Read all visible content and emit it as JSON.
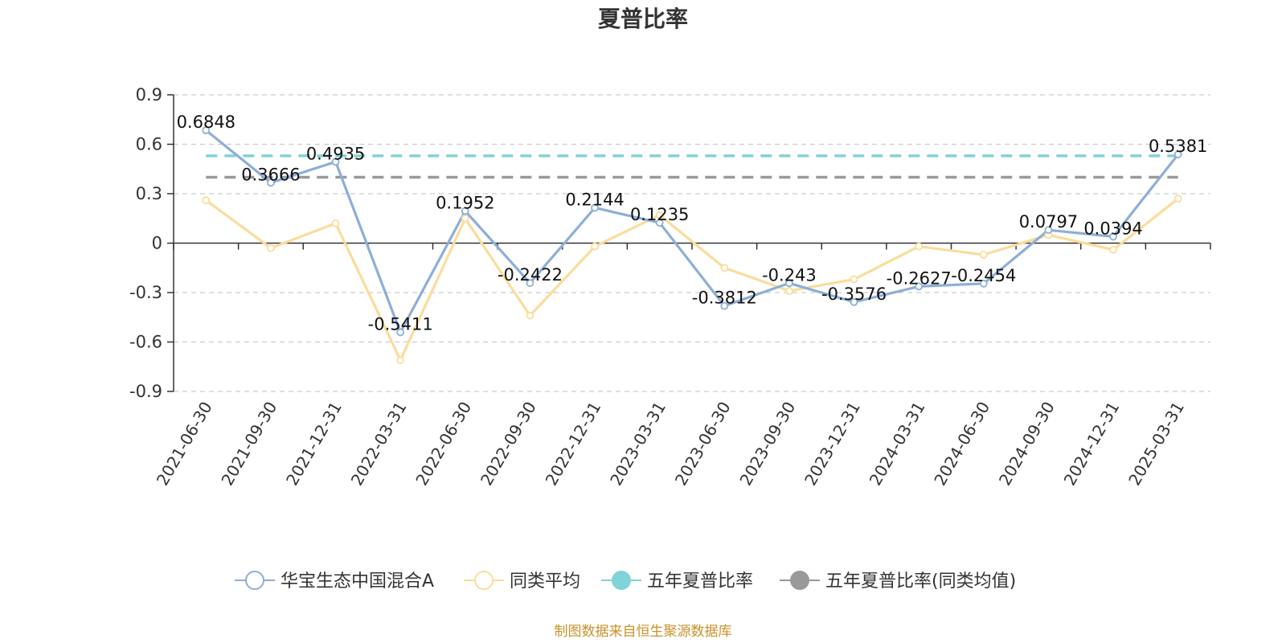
{
  "chart_data": {
    "type": "line",
    "title": "夏普比率",
    "categories": [
      "2021-06-30",
      "2021-09-30",
      "2021-12-31",
      "2022-03-31",
      "2022-06-30",
      "2022-09-30",
      "2022-12-31",
      "2023-03-31",
      "2023-06-30",
      "2023-09-30",
      "2023-12-31",
      "2024-03-31",
      "2024-06-30",
      "2024-09-30",
      "2024-12-31",
      "2025-03-31"
    ],
    "ylim": [
      -0.9,
      0.9
    ],
    "yticks": [
      "0.9",
      "0.6",
      "0.3",
      "0",
      "-0.3",
      "-0.6",
      "-0.9"
    ],
    "grid": true,
    "legend_position": "bottom",
    "series": [
      {
        "name": "华宝生态中国混合A",
        "color": "#8eaed8",
        "values": [
          0.6848,
          0.3666,
          0.4935,
          -0.5411,
          0.1952,
          -0.2422,
          0.2144,
          0.1235,
          -0.3812,
          -0.243,
          -0.3576,
          -0.2627,
          -0.2454,
          0.0797,
          0.0394,
          0.5381
        ],
        "labels": [
          "0.6848",
          "0.3666",
          "0.4935",
          "-0.5411",
          "0.1952",
          "-0.2422",
          "0.2144",
          "0.1235",
          "-0.3812",
          "-0.243",
          "-0.3576",
          "-0.2627",
          "-0.2454",
          "0.0797",
          "0.0394",
          "0.5381"
        ]
      },
      {
        "name": "同类平均",
        "color": "#fbdc9b",
        "values": [
          0.26,
          -0.03,
          0.12,
          -0.71,
          0.15,
          -0.44,
          -0.02,
          0.17,
          -0.15,
          -0.29,
          -0.22,
          -0.02,
          -0.07,
          0.05,
          -0.04,
          0.27
        ]
      },
      {
        "name": "五年夏普比率",
        "color": "#80d3d6",
        "constant": 0.53
      },
      {
        "name": "五年夏普比率(同类均值)",
        "color": "#999999",
        "constant": 0.4
      }
    ],
    "source": "制图数据来自恒生聚源数据库"
  }
}
